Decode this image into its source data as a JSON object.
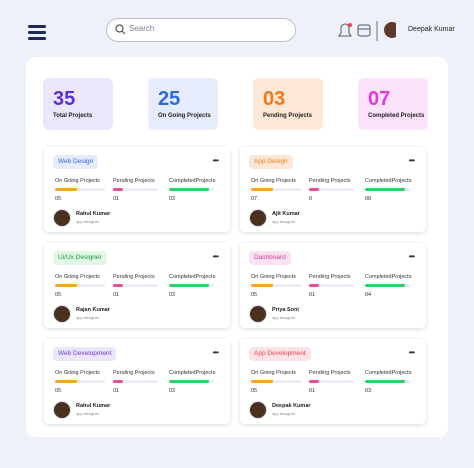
{
  "header": {
    "search_placeholder": "Search",
    "user_name": "Deepak Kumar"
  },
  "stats": [
    {
      "value": "35",
      "label": "Total Projects"
    },
    {
      "value": "25",
      "label": "On Going Projects"
    },
    {
      "value": "03",
      "label": "Pending Projects"
    },
    {
      "value": "07",
      "label": "Completed Projects"
    }
  ],
  "column_labels": [
    "On Going Projects",
    "Pending Projects",
    "CompletedProjects"
  ],
  "projects": [
    {
      "tag": "Web Design",
      "counts": [
        "05",
        "01",
        "03"
      ],
      "name": "Rahul Kumar",
      "role": "app designer"
    },
    {
      "tag": "App Design",
      "counts": [
        "07",
        "0",
        "08"
      ],
      "name": "Ajit Kumar",
      "role": "app designer"
    },
    {
      "tag": "Ui/Ux Designer",
      "counts": [
        "05",
        "01",
        "03"
      ],
      "name": "Rajan Kumar",
      "role": "app designer"
    },
    {
      "tag": "Dashboard",
      "counts": [
        "05",
        "01",
        "04"
      ],
      "name": "Priya Soni",
      "role": "app designer"
    },
    {
      "tag": "Web Development",
      "counts": [
        "05",
        "01",
        "03"
      ],
      "name": "Rahul Kumar",
      "role": "app designer"
    },
    {
      "tag": "App Development",
      "counts": [
        "05",
        "01",
        "03"
      ],
      "name": "Deepak Kumar",
      "role": "app designer"
    }
  ]
}
